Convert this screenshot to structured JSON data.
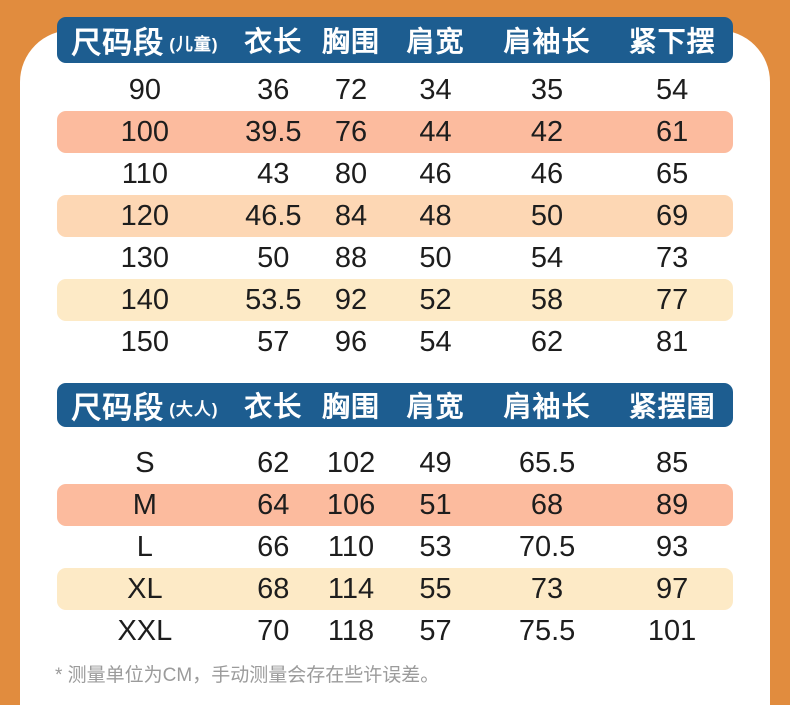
{
  "theme": {
    "background": "#e18c3e",
    "card": "#ffffff",
    "header_bg": "#1d5d90",
    "header_text": "#ffffff",
    "text": "#1d1d1d",
    "note_text": "#9b9b9b",
    "row_highlights": {
      "white": "transparent",
      "salmon": "#fcbb9e",
      "peach": "#fdd7b4",
      "cream": "#fdeac6"
    }
  },
  "tables": [
    {
      "name": "children-size-table",
      "header": {
        "size_label": "尺码段",
        "size_group": "(儿童)",
        "columns": [
          "衣长",
          "胸围",
          "肩宽",
          "肩袖长",
          "紧下摆"
        ]
      },
      "rows": [
        {
          "size": "90",
          "values": [
            "36",
            "72",
            "34",
            "35",
            "54"
          ],
          "highlight": "white"
        },
        {
          "size": "100",
          "values": [
            "39.5",
            "76",
            "44",
            "42",
            "61"
          ],
          "highlight": "salmon"
        },
        {
          "size": "110",
          "values": [
            "43",
            "80",
            "46",
            "46",
            "65"
          ],
          "highlight": "white"
        },
        {
          "size": "120",
          "values": [
            "46.5",
            "84",
            "48",
            "50",
            "69"
          ],
          "highlight": "peach"
        },
        {
          "size": "130",
          "values": [
            "50",
            "88",
            "50",
            "54",
            "73"
          ],
          "highlight": "white"
        },
        {
          "size": "140",
          "values": [
            "53.5",
            "92",
            "52",
            "58",
            "77"
          ],
          "highlight": "cream"
        },
        {
          "size": "150",
          "values": [
            "57",
            "96",
            "54",
            "62",
            "81"
          ],
          "highlight": "white"
        }
      ]
    },
    {
      "name": "adult-size-table",
      "header": {
        "size_label": "尺码段",
        "size_group": "(大人)",
        "columns": [
          "衣长",
          "胸围",
          "肩宽",
          "肩袖长",
          "紧摆围"
        ]
      },
      "rows": [
        {
          "size": "S",
          "values": [
            "62",
            "102",
            "49",
            "65.5",
            "85"
          ],
          "highlight": "white"
        },
        {
          "size": "M",
          "values": [
            "64",
            "106",
            "51",
            "68",
            "89"
          ],
          "highlight": "salmon"
        },
        {
          "size": "L",
          "values": [
            "66",
            "110",
            "53",
            "70.5",
            "93"
          ],
          "highlight": "white"
        },
        {
          "size": "XL",
          "values": [
            "68",
            "114",
            "55",
            "73",
            "97"
          ],
          "highlight": "cream"
        },
        {
          "size": "XXL",
          "values": [
            "70",
            "118",
            "57",
            "75.5",
            "101"
          ],
          "highlight": "white"
        }
      ]
    }
  ],
  "footnote": "* 测量单位为CM，手动测量会存在些许误差。",
  "chart_data": [
    {
      "type": "table",
      "title": "尺码段(儿童)",
      "columns": [
        "尺码段",
        "衣长",
        "胸围",
        "肩宽",
        "肩袖长",
        "紧下摆"
      ],
      "rows": [
        [
          "90",
          36,
          72,
          34,
          35,
          54
        ],
        [
          "100",
          39.5,
          76,
          44,
          42,
          61
        ],
        [
          "110",
          43,
          80,
          46,
          46,
          65
        ],
        [
          "120",
          46.5,
          84,
          48,
          50,
          69
        ],
        [
          "130",
          50,
          88,
          50,
          54,
          73
        ],
        [
          "140",
          53.5,
          92,
          52,
          58,
          77
        ],
        [
          "150",
          57,
          96,
          54,
          62,
          81
        ]
      ]
    },
    {
      "type": "table",
      "title": "尺码段(大人)",
      "columns": [
        "尺码段",
        "衣长",
        "胸围",
        "肩宽",
        "肩袖长",
        "紧摆围"
      ],
      "rows": [
        [
          "S",
          62,
          102,
          49,
          65.5,
          85
        ],
        [
          "M",
          64,
          106,
          51,
          68,
          89
        ],
        [
          "L",
          66,
          110,
          53,
          70.5,
          93
        ],
        [
          "XL",
          68,
          114,
          55,
          73,
          97
        ],
        [
          "XXL",
          70,
          118,
          57,
          75.5,
          101
        ]
      ]
    }
  ]
}
